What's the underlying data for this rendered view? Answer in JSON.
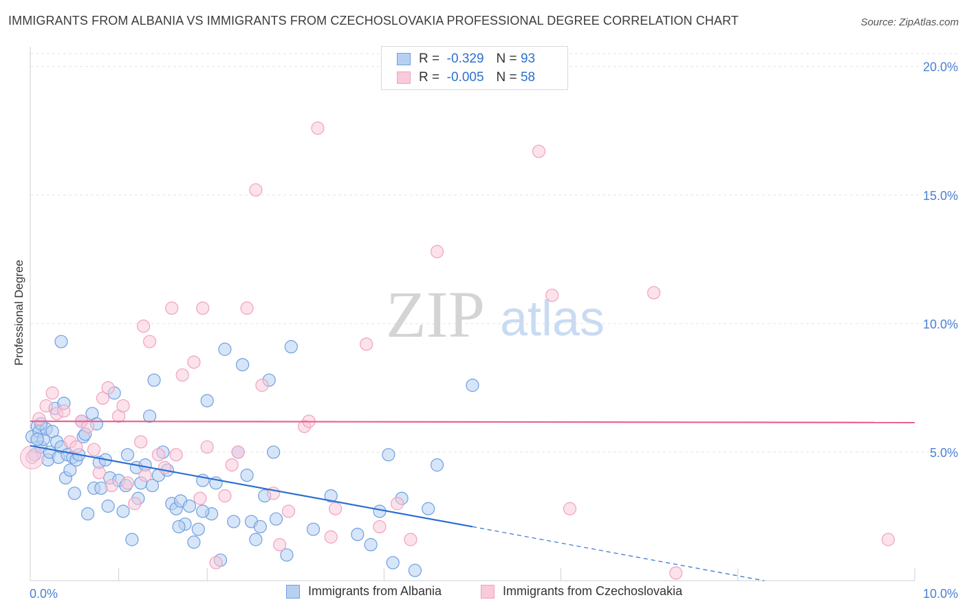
{
  "title": "IMMIGRANTS FROM ALBANIA VS IMMIGRANTS FROM CZECHOSLOVAKIA PROFESSIONAL DEGREE CORRELATION CHART",
  "source": "Source: ZipAtlas.com",
  "watermark": {
    "zip": "ZIP",
    "atlas": "atlas"
  },
  "legend": {
    "r_label": "R =",
    "n_label": "N =",
    "series": [
      {
        "r": "-0.329",
        "n": "93"
      },
      {
        "r": "-0.005",
        "n": "58"
      }
    ]
  },
  "chart_data": {
    "type": "scatter",
    "title": "IMMIGRANTS FROM ALBANIA VS IMMIGRANTS FROM CZECHOSLOVAKIA PROFESSIONAL DEGREE CORRELATION CHART",
    "xlabel": "",
    "ylabel": "Professional Degree",
    "xlim": [
      0,
      10
    ],
    "ylim": [
      0,
      20.5
    ],
    "x_tick_labels": [
      "0.0%",
      "10.0%"
    ],
    "y_ticks": [
      5,
      10,
      15,
      20
    ],
    "y_tick_labels": [
      "5.0%",
      "10.0%",
      "15.0%",
      "20.0%"
    ],
    "grid": true,
    "legend_position": "top-center",
    "series": [
      {
        "name": "Immigrants from Albania",
        "color": "#6d9fe0",
        "fill": "#b7d0f2",
        "line_color": "#2b6fd0",
        "trend": {
          "x": [
            0,
            5.0
          ],
          "y": [
            5.25,
            2.1
          ],
          "dashed_to": [
            8.3,
            0.0
          ]
        },
        "points": [
          [
            0.02,
            5.6
          ],
          [
            0.05,
            4.9
          ],
          [
            0.08,
            6.0
          ],
          [
            0.1,
            5.8
          ],
          [
            0.12,
            5.2
          ],
          [
            0.15,
            5.5
          ],
          [
            0.18,
            5.9
          ],
          [
            0.2,
            4.7
          ],
          [
            0.22,
            5.0
          ],
          [
            0.25,
            5.8
          ],
          [
            0.28,
            6.7
          ],
          [
            0.3,
            5.4
          ],
          [
            0.32,
            4.8
          ],
          [
            0.35,
            5.2
          ],
          [
            0.38,
            6.9
          ],
          [
            0.4,
            4.0
          ],
          [
            0.42,
            4.9
          ],
          [
            0.45,
            4.3
          ],
          [
            0.48,
            4.8
          ],
          [
            0.5,
            3.4
          ],
          [
            0.52,
            4.7
          ],
          [
            0.55,
            4.9
          ],
          [
            0.6,
            5.6
          ],
          [
            0.62,
            5.7
          ],
          [
            0.65,
            2.6
          ],
          [
            0.7,
            6.5
          ],
          [
            0.72,
            3.6
          ],
          [
            0.75,
            6.1
          ],
          [
            0.78,
            4.6
          ],
          [
            0.8,
            3.6
          ],
          [
            0.85,
            4.7
          ],
          [
            0.9,
            4.0
          ],
          [
            0.95,
            7.3
          ],
          [
            1.0,
            3.9
          ],
          [
            1.05,
            2.7
          ],
          [
            1.08,
            3.7
          ],
          [
            1.1,
            4.9
          ],
          [
            1.15,
            1.6
          ],
          [
            1.2,
            4.4
          ],
          [
            1.25,
            3.8
          ],
          [
            1.3,
            4.5
          ],
          [
            1.35,
            6.4
          ],
          [
            1.38,
            3.7
          ],
          [
            1.4,
            7.8
          ],
          [
            1.45,
            4.1
          ],
          [
            1.5,
            5.0
          ],
          [
            1.55,
            4.3
          ],
          [
            1.6,
            3.0
          ],
          [
            1.65,
            2.8
          ],
          [
            1.7,
            3.1
          ],
          [
            1.75,
            2.2
          ],
          [
            1.8,
            2.9
          ],
          [
            1.85,
            1.5
          ],
          [
            1.9,
            2.0
          ],
          [
            1.95,
            3.9
          ],
          [
            2.0,
            7.0
          ],
          [
            2.05,
            2.6
          ],
          [
            2.1,
            3.8
          ],
          [
            2.2,
            9.0
          ],
          [
            2.3,
            2.3
          ],
          [
            2.35,
            5.0
          ],
          [
            2.4,
            8.4
          ],
          [
            2.45,
            4.1
          ],
          [
            2.5,
            2.3
          ],
          [
            2.55,
            1.6
          ],
          [
            2.6,
            2.1
          ],
          [
            2.65,
            3.3
          ],
          [
            2.7,
            7.8
          ],
          [
            2.75,
            5.0
          ],
          [
            2.9,
            1.0
          ],
          [
            2.95,
            9.1
          ],
          [
            3.2,
            2.0
          ],
          [
            3.4,
            3.3
          ],
          [
            3.7,
            1.8
          ],
          [
            3.85,
            1.4
          ],
          [
            3.95,
            2.7
          ],
          [
            4.05,
            4.9
          ],
          [
            4.1,
            0.7
          ],
          [
            4.2,
            3.2
          ],
          [
            4.5,
            2.8
          ],
          [
            4.6,
            4.5
          ],
          [
            5.0,
            7.6
          ],
          [
            4.35,
            0.4
          ],
          [
            0.35,
            9.3
          ],
          [
            0.08,
            5.5
          ],
          [
            1.95,
            2.7
          ],
          [
            2.15,
            0.8
          ],
          [
            0.58,
            6.2
          ],
          [
            0.88,
            2.9
          ],
          [
            1.68,
            2.1
          ],
          [
            0.12,
            6.1
          ],
          [
            2.78,
            2.4
          ],
          [
            1.22,
            3.2
          ]
        ]
      },
      {
        "name": "Immigrants from Czechoslovakia",
        "color": "#f2a0bd",
        "fill": "#f8cadb",
        "line_color": "#e8628f",
        "trend": {
          "x": [
            0,
            10.0
          ],
          "y": [
            6.2,
            6.15
          ]
        },
        "points": [
          [
            0.02,
            4.8
          ],
          [
            0.1,
            6.3
          ],
          [
            0.18,
            6.8
          ],
          [
            0.25,
            7.3
          ],
          [
            0.3,
            6.5
          ],
          [
            0.38,
            6.6
          ],
          [
            0.45,
            5.4
          ],
          [
            0.52,
            5.2
          ],
          [
            0.58,
            6.2
          ],
          [
            0.65,
            6.0
          ],
          [
            0.72,
            5.1
          ],
          [
            0.78,
            4.2
          ],
          [
            0.82,
            7.1
          ],
          [
            0.88,
            7.5
          ],
          [
            0.92,
            3.7
          ],
          [
            1.0,
            6.4
          ],
          [
            1.05,
            6.8
          ],
          [
            1.1,
            3.8
          ],
          [
            1.18,
            3.0
          ],
          [
            1.25,
            5.4
          ],
          [
            1.3,
            4.1
          ],
          [
            1.35,
            9.3
          ],
          [
            1.45,
            4.9
          ],
          [
            1.52,
            4.4
          ],
          [
            1.6,
            10.6
          ],
          [
            1.65,
            4.9
          ],
          [
            1.72,
            8.0
          ],
          [
            1.85,
            8.5
          ],
          [
            1.92,
            3.2
          ],
          [
            1.95,
            10.6
          ],
          [
            2.0,
            5.2
          ],
          [
            2.1,
            0.7
          ],
          [
            2.2,
            3.3
          ],
          [
            2.28,
            4.5
          ],
          [
            2.35,
            5.0
          ],
          [
            2.45,
            10.6
          ],
          [
            2.55,
            15.2
          ],
          [
            2.62,
            7.6
          ],
          [
            2.75,
            3.4
          ],
          [
            2.82,
            1.4
          ],
          [
            2.92,
            2.7
          ],
          [
            3.1,
            6.0
          ],
          [
            3.15,
            6.2
          ],
          [
            3.25,
            17.6
          ],
          [
            3.4,
            1.7
          ],
          [
            3.45,
            2.8
          ],
          [
            3.8,
            9.2
          ],
          [
            3.95,
            2.1
          ],
          [
            4.15,
            3.0
          ],
          [
            4.3,
            1.6
          ],
          [
            4.6,
            12.8
          ],
          [
            5.75,
            16.7
          ],
          [
            5.9,
            11.1
          ],
          [
            6.1,
            2.8
          ],
          [
            7.05,
            11.2
          ],
          [
            7.3,
            0.3
          ],
          [
            9.7,
            1.6
          ],
          [
            1.28,
            9.9
          ]
        ]
      }
    ]
  }
}
